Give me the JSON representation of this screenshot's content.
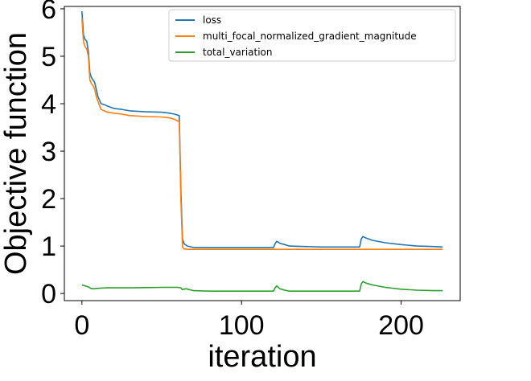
{
  "chart_data": {
    "type": "line",
    "xlabel": "iteration",
    "ylabel": "Objective function",
    "xlim": [
      -11,
      237
    ],
    "ylim": [
      -0.15,
      6.05
    ],
    "xticks": [
      0,
      100,
      200
    ],
    "yticks": [
      0,
      1,
      2,
      3,
      4,
      5,
      6
    ],
    "grid": false,
    "legend_position": "top-right",
    "series": [
      {
        "name": "loss",
        "color": "#1f77b4",
        "x": [
          0,
          1,
          2,
          3,
          4,
          5,
          6,
          7,
          8,
          9,
          10,
          12,
          14,
          16,
          20,
          25,
          30,
          40,
          50,
          55,
          58,
          61,
          62,
          63,
          64,
          66,
          70,
          80,
          90,
          100,
          110,
          120,
          121,
          122,
          124,
          127,
          130,
          150,
          170,
          174,
          175,
          176,
          178,
          182,
          190,
          200,
          210,
          220,
          226
        ],
        "y": [
          5.95,
          5.45,
          5.35,
          5.32,
          5.1,
          4.65,
          4.55,
          4.5,
          4.45,
          4.3,
          4.15,
          4.0,
          3.98,
          3.95,
          3.9,
          3.88,
          3.85,
          3.83,
          3.82,
          3.8,
          3.78,
          3.75,
          2.2,
          1.15,
          1.05,
          1.0,
          0.97,
          0.97,
          0.97,
          0.97,
          0.97,
          0.97,
          1.05,
          1.1,
          1.06,
          1.03,
          1.0,
          0.98,
          0.98,
          0.98,
          1.15,
          1.2,
          1.17,
          1.12,
          1.07,
          1.03,
          1.0,
          0.99,
          0.98
        ]
      },
      {
        "name": "multi_focal_normalized_gradient_magnitude",
        "color": "#ff7f0e",
        "x": [
          0,
          1,
          2,
          3,
          4,
          5,
          6,
          7,
          8,
          9,
          10,
          12,
          14,
          16,
          20,
          25,
          30,
          40,
          50,
          55,
          58,
          61,
          62,
          63,
          64,
          66,
          70,
          80,
          90,
          100,
          110,
          120,
          121,
          122,
          124,
          127,
          130,
          150,
          170,
          174,
          175,
          176,
          178,
          182,
          190,
          200,
          210,
          220,
          226
        ],
        "y": [
          5.8,
          5.3,
          5.2,
          5.15,
          5.0,
          4.5,
          4.42,
          4.38,
          4.3,
          4.15,
          4.05,
          3.88,
          3.85,
          3.82,
          3.8,
          3.78,
          3.75,
          3.73,
          3.72,
          3.7,
          3.67,
          3.62,
          2.0,
          0.98,
          0.94,
          0.93,
          0.93,
          0.93,
          0.93,
          0.93,
          0.93,
          0.93,
          0.93,
          0.93,
          0.93,
          0.93,
          0.93,
          0.93,
          0.93,
          0.93,
          0.93,
          0.93,
          0.93,
          0.93,
          0.93,
          0.93,
          0.93,
          0.93,
          0.93
        ]
      },
      {
        "name": "total_variation",
        "color": "#2ca02c",
        "x": [
          0,
          2,
          4,
          6,
          8,
          10,
          15,
          20,
          30,
          40,
          50,
          55,
          60,
          62,
          63,
          65,
          70,
          80,
          100,
          120,
          121,
          122,
          124,
          127,
          130,
          150,
          170,
          174,
          175,
          176,
          178,
          182,
          190,
          200,
          210,
          220,
          226
        ],
        "y": [
          0.18,
          0.16,
          0.14,
          0.1,
          0.1,
          0.11,
          0.12,
          0.12,
          0.12,
          0.125,
          0.13,
          0.13,
          0.13,
          0.12,
          0.08,
          0.1,
          0.06,
          0.05,
          0.05,
          0.05,
          0.12,
          0.16,
          0.1,
          0.07,
          0.05,
          0.05,
          0.05,
          0.05,
          0.2,
          0.25,
          0.22,
          0.18,
          0.13,
          0.09,
          0.07,
          0.06,
          0.06
        ]
      }
    ]
  }
}
